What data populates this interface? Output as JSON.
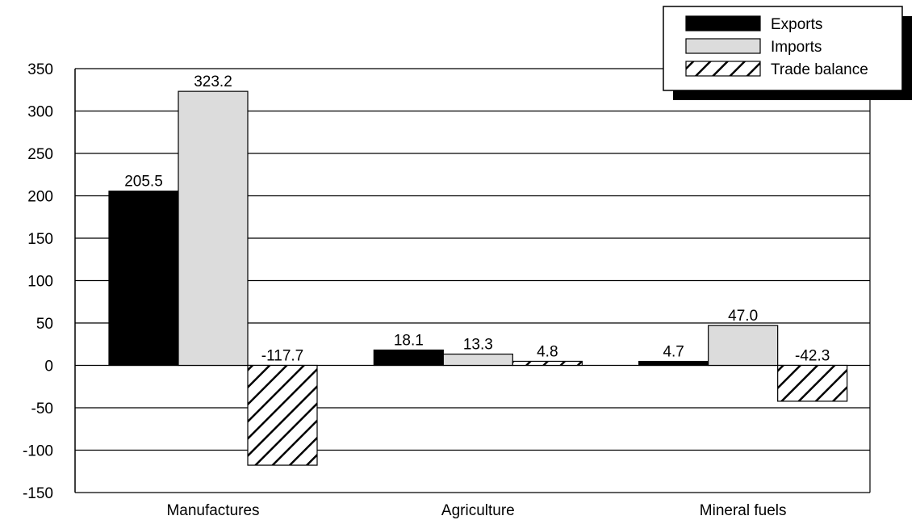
{
  "chart_data": {
    "type": "bar",
    "categories": [
      "Manufactures",
      "Agriculture",
      "Mineral fuels"
    ],
    "series": [
      {
        "name": "Exports",
        "values": [
          205.5,
          18.1,
          4.7
        ],
        "labels": [
          "205.5",
          "18.1",
          "4.7"
        ],
        "color": "#000000",
        "pattern": "solid"
      },
      {
        "name": "Imports",
        "values": [
          323.2,
          13.3,
          47.0
        ],
        "labels": [
          "323.2",
          "13.3",
          "47.0"
        ],
        "color": "#dcdcdc",
        "pattern": "solid"
      },
      {
        "name": "Trade balance",
        "values": [
          -117.7,
          4.8,
          -42.3
        ],
        "labels": [
          "-117.7",
          "4.8",
          "-42.3"
        ],
        "color": "#ffffff",
        "pattern": "diagonal-hatch"
      }
    ],
    "title": "",
    "xlabel": "",
    "ylabel": "",
    "ylim": [
      -150,
      350
    ],
    "yticks": [
      350,
      300,
      250,
      200,
      150,
      100,
      50,
      0,
      -50,
      -100,
      -150
    ],
    "ytick_labels": [
      "350",
      "300",
      "250",
      "200",
      "150",
      "100",
      "50",
      "0",
      "-50",
      "-100",
      "-150"
    ],
    "grid": true,
    "legend": "top-right"
  }
}
